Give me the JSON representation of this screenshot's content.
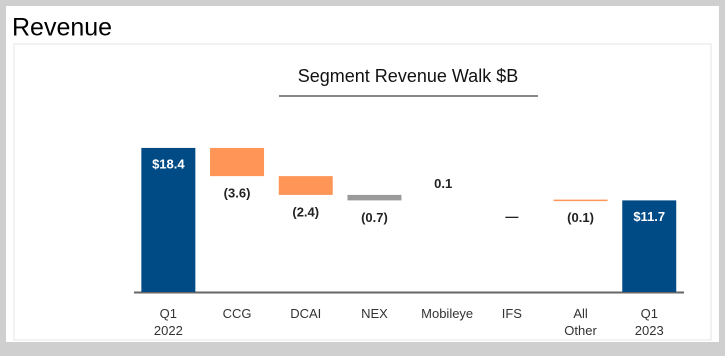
{
  "header": "Revenue",
  "chart_data": {
    "type": "waterfall",
    "title": "Segment Revenue Walk $B",
    "categories": [
      "Q1 2022",
      "CCG",
      "DCAI",
      "NEX",
      "Mobileye",
      "IFS",
      "All Other",
      "Q1 2023"
    ],
    "values": [
      18.4,
      -3.6,
      -2.4,
      -0.7,
      0.1,
      0,
      -0.1,
      11.7
    ],
    "value_labels": [
      "$18.4",
      "(3.6)",
      "(2.4)",
      "(0.7)",
      "0.1",
      "—",
      "(0.1)",
      "$11.7"
    ],
    "totals": [
      true,
      false,
      false,
      false,
      false,
      false,
      false,
      true
    ],
    "colors": [
      "#004a86",
      "#ff9557",
      "#ff9557",
      "#9a9a9a",
      "#ffffff",
      "#ff9557",
      "#ff9557",
      "#004a86"
    ],
    "ylim": [
      0,
      20
    ]
  }
}
